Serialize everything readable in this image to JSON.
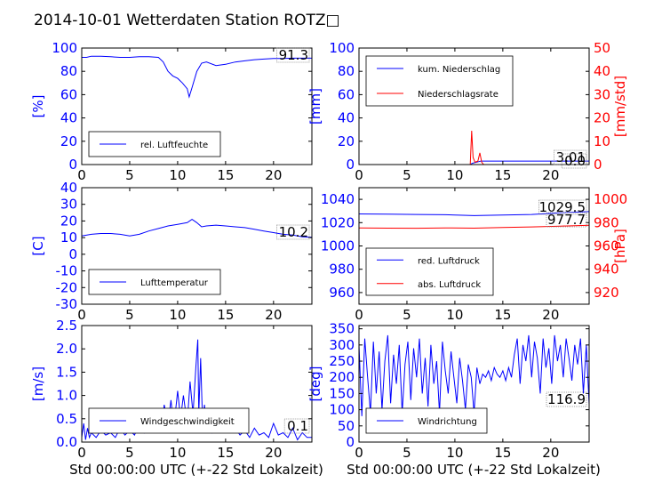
{
  "figure": {
    "title": "2014-10-01 Wetterdaten Station ROTZ□",
    "xlabel": "Std 00:00:00 UTC (+-22 Std Lokalzeit)"
  },
  "colors": {
    "left": "#0000ff",
    "right": "#ff0000",
    "text": "#000000",
    "box": "#888888"
  },
  "chart_data": [
    {
      "id": "humidity",
      "type": "line",
      "ylabel": "[%]",
      "ylim": [
        0,
        100
      ],
      "yticks": [
        0,
        20,
        40,
        60,
        80,
        100
      ],
      "xlim": [
        0,
        24
      ],
      "xticks": [
        0,
        5,
        10,
        15,
        20
      ],
      "value_label": "91.3",
      "legend_position": "lower-left",
      "series": [
        {
          "name": "rel. Luftfeuchte",
          "axis": "left",
          "color": "#0000ff",
          "x": [
            0,
            0.5,
            1,
            2,
            3,
            4,
            5,
            6,
            7,
            8,
            8.5,
            9,
            9.5,
            10,
            10.5,
            11,
            11.2,
            11.5,
            12,
            12.5,
            13,
            14,
            15,
            16,
            17,
            18,
            19,
            20,
            21,
            22,
            23,
            24
          ],
          "y": [
            92,
            92,
            93,
            93,
            92.5,
            92,
            92,
            92.5,
            92.5,
            92,
            88,
            80,
            76,
            74,
            70,
            65,
            58,
            66,
            80,
            87,
            88,
            85,
            86,
            88,
            89,
            90,
            90.5,
            91,
            91,
            91.3,
            91.3,
            91.3
          ]
        }
      ]
    },
    {
      "id": "precip",
      "type": "line",
      "ylabel": "[mm]",
      "ylim": [
        0,
        100
      ],
      "yticks": [
        0,
        20,
        40,
        60,
        80,
        100
      ],
      "y2label": "[mm/std]",
      "y2lim": [
        0,
        50
      ],
      "y2ticks": [
        0,
        10,
        20,
        30,
        40,
        50
      ],
      "xlim": [
        0,
        24
      ],
      "xticks": [
        0,
        5,
        10,
        15,
        20
      ],
      "value_label": "3.01",
      "value_label2": "0.0",
      "legend_position": "top-left",
      "series": [
        {
          "name": "kum. Niederschlag",
          "axis": "left",
          "color": "#0000ff",
          "x": [
            0,
            11.6,
            11.8,
            12,
            12.5,
            12.7,
            13,
            24
          ],
          "y": [
            0,
            0,
            1,
            1.5,
            2.5,
            3.01,
            3.01,
            3.01
          ]
        },
        {
          "name": "Niederschlagsrate",
          "axis": "right",
          "color": "#ff0000",
          "x": [
            0,
            11.6,
            11.75,
            11.9,
            12.1,
            12.4,
            12.6,
            12.8,
            13,
            24
          ],
          "y": [
            0,
            0,
            14.5,
            3,
            1,
            1.5,
            5,
            1,
            0,
            0
          ]
        }
      ]
    },
    {
      "id": "temperature",
      "type": "line",
      "ylabel": "[C]",
      "ylim": [
        -30,
        40
      ],
      "yticks": [
        -30,
        -20,
        -10,
        0,
        10,
        20,
        30,
        40
      ],
      "xlim": [
        0,
        24
      ],
      "xticks": [
        0,
        5,
        10,
        15,
        20
      ],
      "value_label": "10.2",
      "legend_position": "lower-left",
      "series": [
        {
          "name": "Lufttemperatur",
          "axis": "left",
          "color": "#0000ff",
          "x": [
            0,
            1,
            2,
            3,
            4,
            5,
            6,
            7,
            8,
            9,
            10,
            11,
            11.5,
            12,
            12.5,
            13,
            14,
            15,
            16,
            17,
            18,
            19,
            20,
            21,
            22,
            23,
            24
          ],
          "y": [
            11,
            12,
            12.5,
            12.5,
            12,
            11,
            12,
            14,
            15.5,
            17,
            18,
            19,
            21,
            19,
            16.5,
            17,
            17.5,
            17,
            16.5,
            16,
            15,
            14,
            13,
            12,
            11.5,
            10.5,
            10.2
          ]
        }
      ]
    },
    {
      "id": "pressure",
      "type": "line",
      "ylabel": "",
      "ylim": [
        950,
        1050
      ],
      "yticks": [
        960,
        980,
        1000,
        1020,
        1040
      ],
      "y2label": "[hPa]",
      "y2lim": [
        910,
        1010
      ],
      "y2ticks": [
        920,
        940,
        960,
        980,
        1000
      ],
      "xlim": [
        0,
        24
      ],
      "xticks": [
        0,
        5,
        10,
        15,
        20
      ],
      "value_label": "1029.5",
      "value_label2": "977.7",
      "legend_position": "lower-left",
      "series": [
        {
          "name": "red. Luftdruck",
          "axis": "left",
          "color": "#0000ff",
          "x": [
            0,
            3,
            6,
            9,
            12,
            15,
            18,
            21,
            24
          ],
          "y": [
            1027.5,
            1027.3,
            1027,
            1026.8,
            1026,
            1026.5,
            1027,
            1028.5,
            1029.5
          ]
        },
        {
          "name": "abs. Luftdruck",
          "axis": "right",
          "color": "#ff0000",
          "x": [
            0,
            3,
            6,
            9,
            12,
            15,
            18,
            21,
            24
          ],
          "y": [
            975.5,
            975.3,
            975.2,
            975.5,
            975.3,
            975.8,
            976.3,
            977,
            977.7
          ]
        }
      ]
    },
    {
      "id": "wind_speed",
      "type": "line",
      "ylabel": "[m/s]",
      "ylim": [
        0,
        2.5
      ],
      "yticks": [
        0.0,
        0.5,
        1.0,
        1.5,
        2.0,
        2.5
      ],
      "ytick_decimals": 1,
      "xlim": [
        0,
        24
      ],
      "xticks": [
        0,
        5,
        10,
        15,
        20
      ],
      "value_label": "0.1",
      "legend_position": "lower-left",
      "series": [
        {
          "name": "Windgeschwindigkeit",
          "axis": "left",
          "color": "#0000ff",
          "x": [
            0,
            0.2,
            0.4,
            0.6,
            0.8,
            1,
            1.5,
            2,
            2.5,
            3,
            3.5,
            4,
            4.5,
            5,
            5.5,
            6,
            6.5,
            7,
            7.5,
            8,
            8.3,
            8.6,
            9,
            9.3,
            9.6,
            10,
            10.3,
            10.6,
            11,
            11.3,
            11.6,
            11.9,
            12.1,
            12.2,
            12.4,
            12.6,
            12.8,
            13,
            13.3,
            13.6,
            14,
            14.5,
            15,
            15.5,
            16,
            16.5,
            17,
            17.5,
            18,
            18.5,
            19,
            19.5,
            20,
            20.5,
            21,
            21.5,
            22,
            22.5,
            23,
            23.5,
            24
          ],
          "y": [
            0.1,
            0.4,
            0.05,
            0.3,
            0.1,
            0.2,
            0.1,
            0.25,
            0.15,
            0.2,
            0.1,
            0.3,
            0.15,
            0.25,
            0.15,
            0.4,
            0.2,
            0.5,
            0.3,
            0.7,
            0.3,
            0.8,
            0.4,
            0.9,
            0.3,
            1.1,
            0.5,
            1.0,
            0.4,
            1.3,
            0.6,
            1.6,
            2.2,
            0.6,
            1.8,
            0.4,
            0.8,
            0.3,
            0.5,
            0.2,
            0.3,
            0.2,
            0.25,
            0.2,
            0.3,
            0.15,
            0.25,
            0.1,
            0.3,
            0.15,
            0.2,
            0.1,
            0.4,
            0.15,
            0.2,
            0.1,
            0.3,
            0.05,
            0.2,
            0.1,
            0.1
          ]
        }
      ]
    },
    {
      "id": "wind_direction",
      "type": "line",
      "ylabel": "[deg]",
      "ylim": [
        0,
        360
      ],
      "yticks": [
        0,
        50,
        100,
        150,
        200,
        250,
        300,
        350
      ],
      "xlim": [
        0,
        24
      ],
      "xticks": [
        0,
        5,
        10,
        15,
        20
      ],
      "value_label": "116.9",
      "legend_position": "lower-left",
      "series": [
        {
          "name": "Windrichtung",
          "axis": "left",
          "color": "#0000ff",
          "x": [
            0,
            0.3,
            0.6,
            0.9,
            1.2,
            1.5,
            1.8,
            2.1,
            2.4,
            2.7,
            3,
            3.3,
            3.6,
            3.9,
            4.2,
            4.5,
            4.8,
            5.1,
            5.4,
            5.7,
            6,
            6.3,
            6.6,
            6.9,
            7.2,
            7.5,
            7.8,
            8.1,
            8.4,
            8.7,
            9,
            9.3,
            9.6,
            9.9,
            10.2,
            10.5,
            10.8,
            11.1,
            11.4,
            11.7,
            12,
            12.3,
            12.6,
            12.9,
            13.2,
            13.5,
            13.8,
            14.1,
            14.4,
            14.7,
            15,
            15.3,
            15.6,
            15.9,
            16.2,
            16.5,
            16.8,
            17.1,
            17.4,
            17.7,
            18,
            18.3,
            18.6,
            18.9,
            19.2,
            19.5,
            19.8,
            20.1,
            20.4,
            20.7,
            21,
            21.3,
            21.6,
            21.9,
            22.2,
            22.5,
            22.8,
            23.1,
            23.4,
            23.7,
            24
          ],
          "y": [
            300,
            80,
            320,
            200,
            90,
            310,
            150,
            280,
            100,
            250,
            330,
            120,
            270,
            180,
            300,
            90,
            240,
            310,
            130,
            290,
            200,
            320,
            150,
            260,
            110,
            300,
            180,
            250,
            90,
            310,
            220,
            150,
            280,
            200,
            120,
            260,
            190,
            100,
            240,
            200,
            90,
            230,
            180,
            210,
            200,
            220,
            190,
            230,
            210,
            200,
            220,
            190,
            230,
            200,
            270,
            320,
            180,
            300,
            250,
            330,
            200,
            310,
            260,
            150,
            320,
            230,
            290,
            180,
            330,
            250,
            300,
            200,
            320,
            260,
            190,
            300,
            240,
            320,
            150,
            300,
            116.9
          ]
        }
      ]
    }
  ]
}
